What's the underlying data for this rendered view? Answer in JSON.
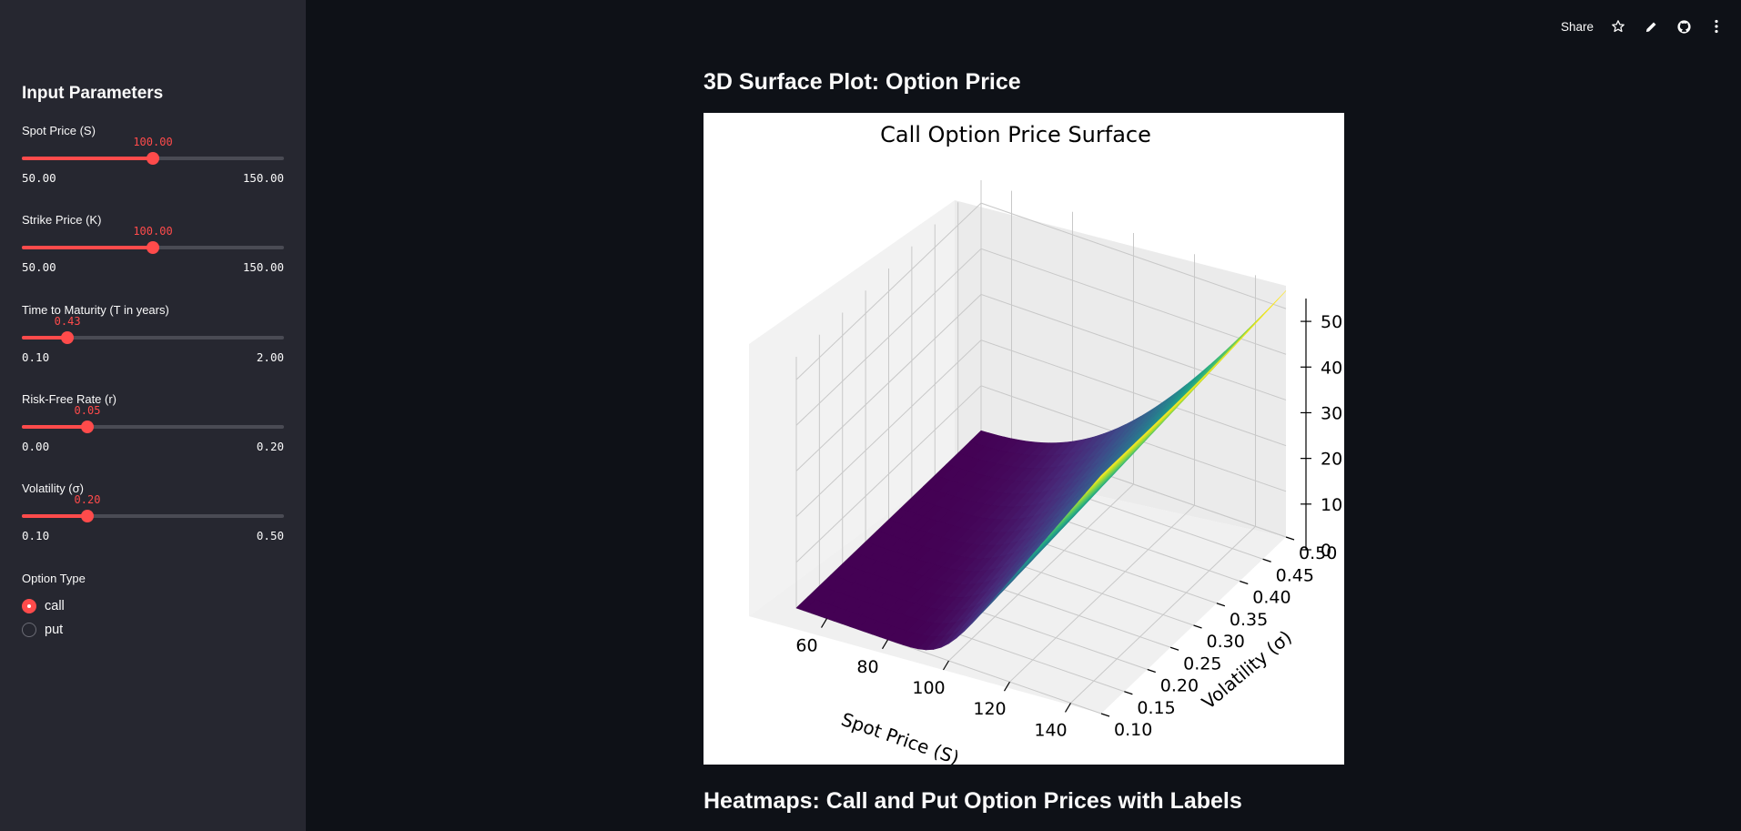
{
  "sidebar": {
    "title": "Input Parameters",
    "sliders": [
      {
        "label": "Spot Price (S)",
        "value": "100.00",
        "min": "50.00",
        "max": "150.00",
        "fraction": 0.5
      },
      {
        "label": "Strike Price (K)",
        "value": "100.00",
        "min": "50.00",
        "max": "150.00",
        "fraction": 0.5
      },
      {
        "label": "Time to Maturity (T in years)",
        "value": "0.43",
        "min": "0.10",
        "max": "2.00",
        "fraction": 0.174
      },
      {
        "label": "Risk-Free Rate (r)",
        "value": "0.05",
        "min": "0.00",
        "max": "0.20",
        "fraction": 0.25
      },
      {
        "label": "Volatility (σ)",
        "value": "0.20",
        "min": "0.10",
        "max": "0.50",
        "fraction": 0.25
      }
    ],
    "option_type": {
      "label": "Option Type",
      "options": [
        "call",
        "put"
      ],
      "selected": "call"
    }
  },
  "toolbar": {
    "share_label": "Share",
    "icons": [
      "star-icon",
      "pencil-icon",
      "github-icon",
      "more-vertical-icon"
    ]
  },
  "main": {
    "surface_heading": "3D Surface Plot: Option Price",
    "heatmap_heading": "Heatmaps: Call and Put Option Prices with Labels"
  },
  "colors": {
    "accent": "#ff4b4b",
    "background": "#0e1117",
    "sidebar": "#262730"
  },
  "chart_data": {
    "type": "surface",
    "title": "Call Option Price Surface",
    "xlabel": "Spot Price (S)",
    "ylabel": "Volatility (σ)",
    "zlabel": "",
    "x_ticks": [
      "60",
      "80",
      "100",
      "120",
      "140"
    ],
    "y_ticks": [
      "0.10",
      "0.15",
      "0.20",
      "0.25",
      "0.30",
      "0.35",
      "0.40",
      "0.45",
      "0.50"
    ],
    "z_ticks": [
      "0",
      "10",
      "20",
      "30",
      "40",
      "50"
    ],
    "xlim": [
      50,
      150
    ],
    "ylim": [
      0.1,
      0.5
    ],
    "zlim": [
      0,
      55
    ],
    "colormap": "viridis",
    "grid": true
  }
}
